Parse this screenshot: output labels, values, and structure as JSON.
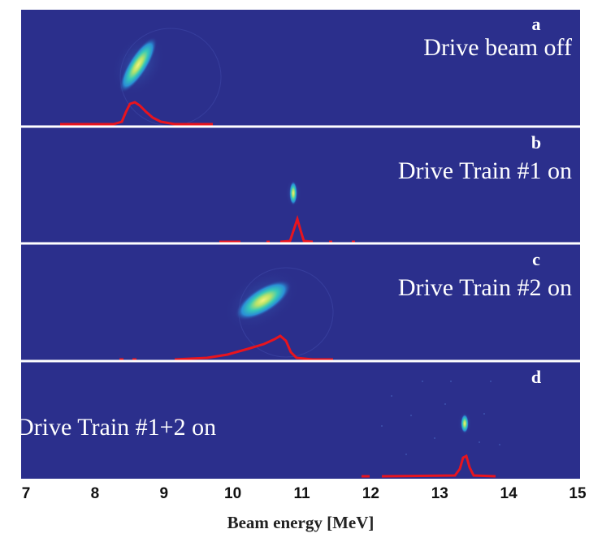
{
  "figure": {
    "xlabel": "Beam energy [MeV]",
    "x_ticks": [
      "7",
      "8",
      "9",
      "10",
      "11",
      "12",
      "13",
      "14",
      "15"
    ],
    "x_range": [
      7,
      15
    ],
    "background_color": "#2b2f8c",
    "separator_color": "#ffffff",
    "profile_color": "#e8141e",
    "panels": [
      {
        "letter": "a",
        "label": "Drive beam off"
      },
      {
        "letter": "b",
        "label": "Drive Train #1 on"
      },
      {
        "letter": "c",
        "label": "Drive Train #2 on"
      },
      {
        "letter": "d",
        "label": "Drive Train #1+2 on"
      }
    ]
  }
}
